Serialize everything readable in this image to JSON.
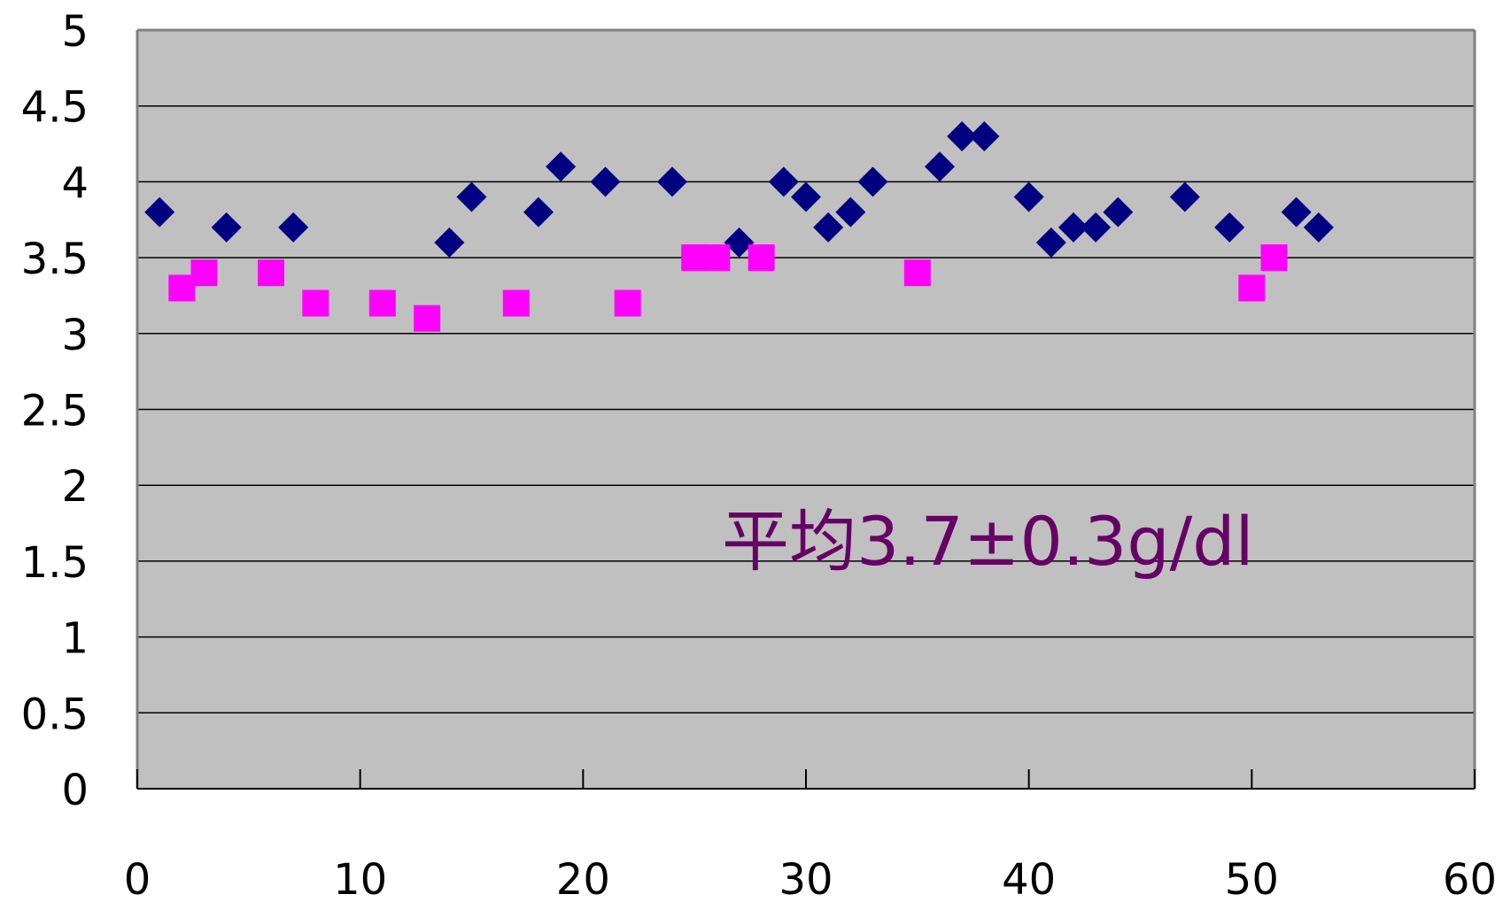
{
  "chart_data": {
    "type": "scatter",
    "title": "",
    "xlabel": "",
    "ylabel": "",
    "xlim": [
      0,
      60
    ],
    "ylim": [
      0,
      5
    ],
    "x_ticks": [
      "0",
      "10",
      "20",
      "30",
      "40",
      "50",
      "60"
    ],
    "y_ticks": [
      "0",
      "0.5",
      "1",
      "1.5",
      "2",
      "2.5",
      "3",
      "3.5",
      "4",
      "4.5",
      "5"
    ],
    "grid": "horizontal",
    "plot_background": "#c0c0c0",
    "annotation": "平均3.7±0.3g/dl",
    "annotation_color": "#660066",
    "series": [
      {
        "marker": "diamond",
        "color": "#000080",
        "points": [
          [
            1,
            3.8
          ],
          [
            4,
            3.7
          ],
          [
            7,
            3.7
          ],
          [
            14,
            3.6
          ],
          [
            15,
            3.9
          ],
          [
            18,
            3.8
          ],
          [
            19,
            4.1
          ],
          [
            21,
            4.0
          ],
          [
            24,
            4.0
          ],
          [
            27,
            3.6
          ],
          [
            29,
            4.0
          ],
          [
            30,
            3.9
          ],
          [
            31,
            3.7
          ],
          [
            32,
            3.8
          ],
          [
            33,
            4.0
          ],
          [
            36,
            4.1
          ],
          [
            37,
            4.3
          ],
          [
            38,
            4.3
          ],
          [
            40,
            3.9
          ],
          [
            41,
            3.6
          ],
          [
            42,
            3.7
          ],
          [
            43,
            3.7
          ],
          [
            44,
            3.8
          ],
          [
            47,
            3.9
          ],
          [
            49,
            3.7
          ],
          [
            52,
            3.8
          ],
          [
            53,
            3.7
          ]
        ]
      },
      {
        "marker": "square",
        "color": "#ff00ff",
        "points": [
          [
            2,
            3.3
          ],
          [
            3,
            3.4
          ],
          [
            6,
            3.4
          ],
          [
            8,
            3.2
          ],
          [
            11,
            3.2
          ],
          [
            13,
            3.1
          ],
          [
            17,
            3.2
          ],
          [
            22,
            3.2
          ],
          [
            25,
            3.5
          ],
          [
            26,
            3.5
          ],
          [
            28,
            3.5
          ],
          [
            35,
            3.4
          ],
          [
            50,
            3.3
          ],
          [
            51,
            3.5
          ]
        ]
      }
    ]
  }
}
